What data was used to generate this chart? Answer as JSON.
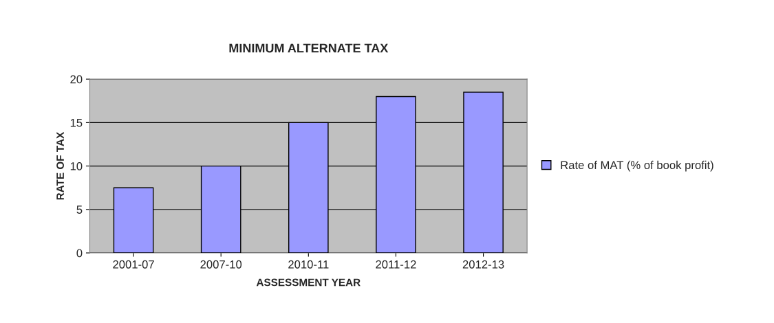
{
  "chart_data": {
    "type": "bar",
    "title": "MINIMUM ALTERNATE TAX",
    "xlabel": "ASSESSMENT YEAR",
    "ylabel": "RATE OF TAX",
    "categories": [
      "2001-07",
      "2007-10",
      "2010-11",
      "2011-12",
      "2012-13"
    ],
    "series": [
      {
        "name": "Rate of MAT (% of book profit)",
        "color": "#9999ff",
        "values": [
          7.5,
          10,
          15,
          18,
          18.5
        ]
      }
    ],
    "ylim": [
      0,
      20
    ],
    "yticks": [
      0,
      5,
      10,
      15,
      20
    ],
    "grid": "y",
    "legend": "right"
  }
}
